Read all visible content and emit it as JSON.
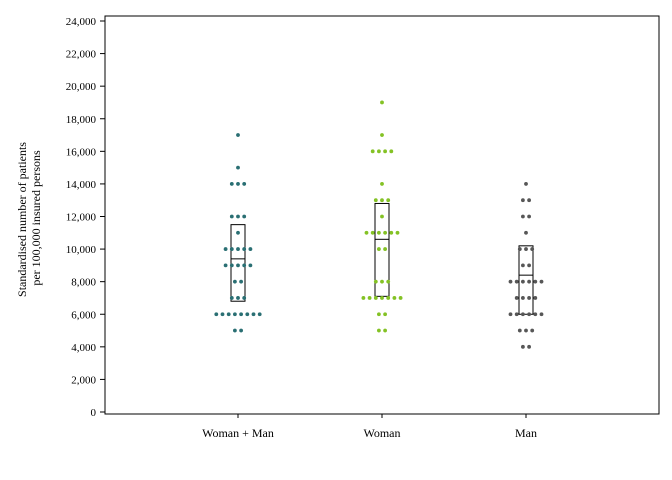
{
  "chart_data": {
    "type": "scatter",
    "subtype": "dot-strip plot with box (median and interquartile range)",
    "title": "",
    "xlabel": "",
    "ylabel": [
      "Standardised number of patients",
      "per 100,000 insured persons"
    ],
    "ylim": [
      0,
      24000
    ],
    "ytick_labels": [
      "0",
      "2,000",
      "4,000",
      "6,000",
      "8,000",
      "10,000",
      "12,000",
      "14,000",
      "16,000",
      "18,000",
      "20,000",
      "22,000",
      "24,000"
    ],
    "yticks": [
      0,
      2000,
      4000,
      6000,
      8000,
      10000,
      12000,
      14000,
      16000,
      18000,
      20000,
      22000,
      24000
    ],
    "grid": false,
    "legend": "none",
    "categories": [
      "Woman + Man",
      "Woman",
      "Man"
    ],
    "series": [
      {
        "color": "#2a6f73",
        "values": [
          17000,
          15000,
          14000,
          14000,
          14000,
          12000,
          12000,
          12000,
          11000,
          10000,
          10000,
          10000,
          10000,
          10000,
          9000,
          9000,
          9000,
          9000,
          9000,
          8000,
          8000,
          7000,
          7000,
          7000,
          6000,
          6000,
          6000,
          6000,
          6000,
          6000,
          6000,
          6000,
          5000,
          5000
        ],
        "box": {
          "q1": 6800,
          "median": 9400,
          "q3": 11500
        }
      },
      {
        "color": "#84c225",
        "values": [
          19000,
          17000,
          16000,
          16000,
          16000,
          16000,
          14000,
          13000,
          13000,
          13000,
          12000,
          11000,
          11000,
          11000,
          11000,
          11000,
          11000,
          10000,
          10000,
          8000,
          8000,
          8000,
          7000,
          7000,
          7000,
          7000,
          7000,
          7000,
          7000,
          6000,
          6000,
          5000,
          5000
        ],
        "box": {
          "q1": 7100,
          "median": 10600,
          "q3": 12800
        }
      },
      {
        "color": "#575757",
        "values": [
          14000,
          13000,
          13000,
          12000,
          12000,
          11000,
          10000,
          10000,
          10000,
          9000,
          9000,
          8000,
          8000,
          8000,
          8000,
          8000,
          8000,
          7000,
          7000,
          7000,
          7000,
          6000,
          6000,
          6000,
          6000,
          6000,
          6000,
          5000,
          5000,
          5000,
          4000,
          4000
        ],
        "box": {
          "q1": 6000,
          "median": 8400,
          "q3": 10200
        }
      }
    ]
  }
}
